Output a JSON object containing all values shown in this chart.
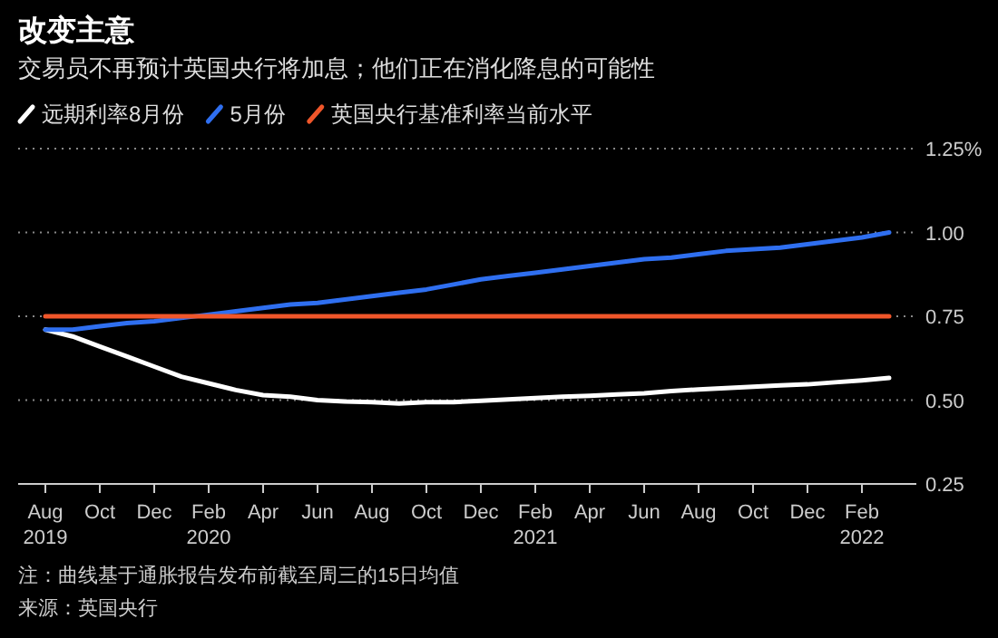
{
  "chart_data": {
    "type": "line",
    "title": "改变主意",
    "subtitle": "交易员不再预计英国央行将加息；他们正在消化降息的可能性",
    "x": [
      "2019-08",
      "2019-09",
      "2019-10",
      "2019-11",
      "2019-12",
      "2020-01",
      "2020-02",
      "2020-03",
      "2020-04",
      "2020-05",
      "2020-06",
      "2020-07",
      "2020-08",
      "2020-09",
      "2020-10",
      "2020-11",
      "2020-12",
      "2021-01",
      "2021-02",
      "2021-03",
      "2021-04",
      "2021-05",
      "2021-06",
      "2021-07",
      "2021-08",
      "2021-09",
      "2021-10",
      "2021-11",
      "2021-12",
      "2022-01",
      "2022-02",
      "2022-03"
    ],
    "series": [
      {
        "name": "远期利率8月份",
        "color": "#ffffff",
        "values": [
          0.71,
          0.69,
          0.66,
          0.63,
          0.6,
          0.57,
          0.55,
          0.53,
          0.515,
          0.51,
          0.5,
          0.496,
          0.494,
          0.49,
          0.494,
          0.494,
          0.498,
          0.502,
          0.506,
          0.51,
          0.513,
          0.517,
          0.52,
          0.527,
          0.532,
          0.536,
          0.54,
          0.544,
          0.547,
          0.553,
          0.559,
          0.566
        ]
      },
      {
        "name": "5月份",
        "color": "#2f6ff0",
        "values": [
          0.71,
          0.71,
          0.72,
          0.73,
          0.735,
          0.745,
          0.755,
          0.765,
          0.775,
          0.785,
          0.79,
          0.8,
          0.81,
          0.82,
          0.83,
          0.845,
          0.86,
          0.87,
          0.88,
          0.89,
          0.9,
          0.91,
          0.92,
          0.925,
          0.935,
          0.945,
          0.95,
          0.955,
          0.965,
          0.975,
          0.985,
          1.0
        ]
      },
      {
        "name": "英国央行基准利率当前水平",
        "color": "#f0562a",
        "values": [
          0.75,
          0.75,
          0.75,
          0.75,
          0.75,
          0.75,
          0.75,
          0.75,
          0.75,
          0.75,
          0.75,
          0.75,
          0.75,
          0.75,
          0.75,
          0.75,
          0.75,
          0.75,
          0.75,
          0.75,
          0.75,
          0.75,
          0.75,
          0.75,
          0.75,
          0.75,
          0.75,
          0.75,
          0.75,
          0.75,
          0.75,
          0.75
        ]
      }
    ],
    "xlim": [
      "2019-07",
      "2022-04"
    ],
    "xticks": [
      {
        "value": "2019-08",
        "label": "Aug\n2019"
      },
      {
        "value": "2019-10",
        "label": "Oct"
      },
      {
        "value": "2019-12",
        "label": "Dec"
      },
      {
        "value": "2020-02",
        "label": "Feb\n2020"
      },
      {
        "value": "2020-04",
        "label": "Apr"
      },
      {
        "value": "2020-06",
        "label": "Jun"
      },
      {
        "value": "2020-08",
        "label": "Aug"
      },
      {
        "value": "2020-10",
        "label": "Oct"
      },
      {
        "value": "2020-12",
        "label": "Dec"
      },
      {
        "value": "2021-02",
        "label": "Feb\n2021"
      },
      {
        "value": "2021-04",
        "label": "Apr"
      },
      {
        "value": "2021-06",
        "label": "Jun"
      },
      {
        "value": "2021-08",
        "label": "Aug"
      },
      {
        "value": "2021-10",
        "label": "Oct"
      },
      {
        "value": "2021-12",
        "label": "Dec"
      },
      {
        "value": "2022-02",
        "label": "Feb\n2022"
      }
    ],
    "ylim": [
      0.25,
      1.25
    ],
    "yticks": [
      {
        "value": 0.25,
        "label": "0.25"
      },
      {
        "value": 0.5,
        "label": "0.50"
      },
      {
        "value": 0.75,
        "label": "0.75"
      },
      {
        "value": 1.0,
        "label": "1.00"
      },
      {
        "value": 1.25,
        "label": "1.25%"
      }
    ],
    "grid": "y",
    "legend": "top left",
    "line_style": "solid",
    "marker": "none",
    "annotations": [
      "注：曲线基于通胀报告发布前截至周三的15日均值",
      "来源：英国央行"
    ]
  }
}
